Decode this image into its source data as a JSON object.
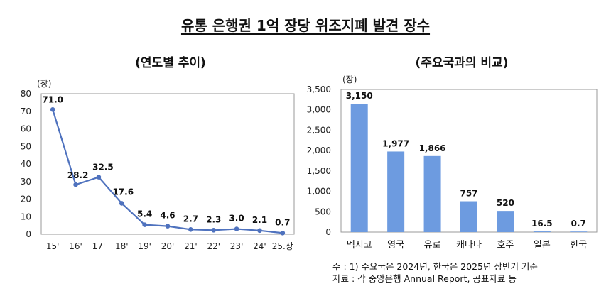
{
  "title": "유통 은행권 1억 장당 위조지폐 발견 장수",
  "footnote": {
    "note": "주 : 1) 주요국은 2024년, 한국은 2025년 상반기 기준",
    "source": "자료 : 각 중앙은행 Annual Report, 공표자료 등"
  },
  "colors": {
    "line": "#4f72be",
    "bar": "#6d9be0",
    "axis": "#9a9a9a"
  },
  "chart_data": [
    {
      "type": "line",
      "title": "(연도별 추이)",
      "unit": "(장)",
      "x": [
        "15'",
        "16'",
        "17'",
        "18'",
        "19'",
        "20'",
        "21'",
        "22'",
        "23'",
        "24'",
        "25.상"
      ],
      "values": [
        71.0,
        28.2,
        32.5,
        17.6,
        5.4,
        4.6,
        2.7,
        2.3,
        3.0,
        2.1,
        0.7
      ],
      "labels": [
        "71.0",
        "28.2",
        "32.5",
        "17.6",
        "5.4",
        "4.6",
        "2.7",
        "2.3",
        "3.0",
        "2.1",
        "0.7"
      ],
      "ylim": [
        0,
        80
      ],
      "yticks": [
        "0",
        "10",
        "20",
        "30",
        "40",
        "50",
        "60",
        "70",
        "80"
      ],
      "grid": false
    },
    {
      "type": "bar",
      "title": "(주요국과의 비교)",
      "unit": "(장)",
      "categories": [
        "멕시코",
        "영국",
        "유로",
        "캐나다",
        "호주",
        "일본",
        "한국"
      ],
      "values": [
        3150,
        1977,
        1866,
        757,
        520,
        16.5,
        0.7
      ],
      "labels": [
        "3,150",
        "1,977",
        "1,866",
        "757",
        "520",
        "16.5",
        "0.7"
      ],
      "ylim": [
        0,
        3500
      ],
      "yticks": [
        "0",
        "500",
        "1,000",
        "1,500",
        "2,000",
        "2,500",
        "3,000",
        "3,500"
      ],
      "grid": false
    }
  ]
}
